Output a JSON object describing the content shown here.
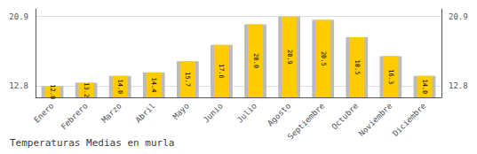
{
  "chart_data": {
    "type": "bar",
    "title": "Temperaturas Medias en murla",
    "categories": [
      "Enero",
      "Febrero",
      "Marzo",
      "Abril",
      "Mayo",
      "Junio",
      "Julio",
      "Agosto",
      "Septiembre",
      "Octubre",
      "Noviembre",
      "Diciembre"
    ],
    "series": [
      {
        "color": "#BBBBBB",
        "values": [
          12.8,
          13.2,
          14.0,
          14.4,
          15.7,
          17.6,
          20.0,
          20.9,
          20.5,
          18.5,
          16.3,
          14.0
        ]
      },
      {
        "color": "#FFCC00",
        "values": [
          12.8,
          13.2,
          14.0,
          14.4,
          15.7,
          17.6,
          20.0,
          20.9,
          20.5,
          18.5,
          16.3,
          14.0
        ],
        "value_labels": [
          "12.8",
          "13.2",
          "14.0",
          "14.4",
          "15.7",
          "17.6",
          "20.0",
          "20.9",
          "20.5",
          "18.5",
          "16.3",
          "14.0"
        ]
      }
    ],
    "data_labels": true,
    "ylim": [
      11.5,
      21.8
    ],
    "yticks": [
      12.8,
      20.9
    ],
    "y2lim": [
      11.5,
      21.8
    ],
    "y2ticks": [
      12.8,
      20.9
    ],
    "grid": true
  }
}
